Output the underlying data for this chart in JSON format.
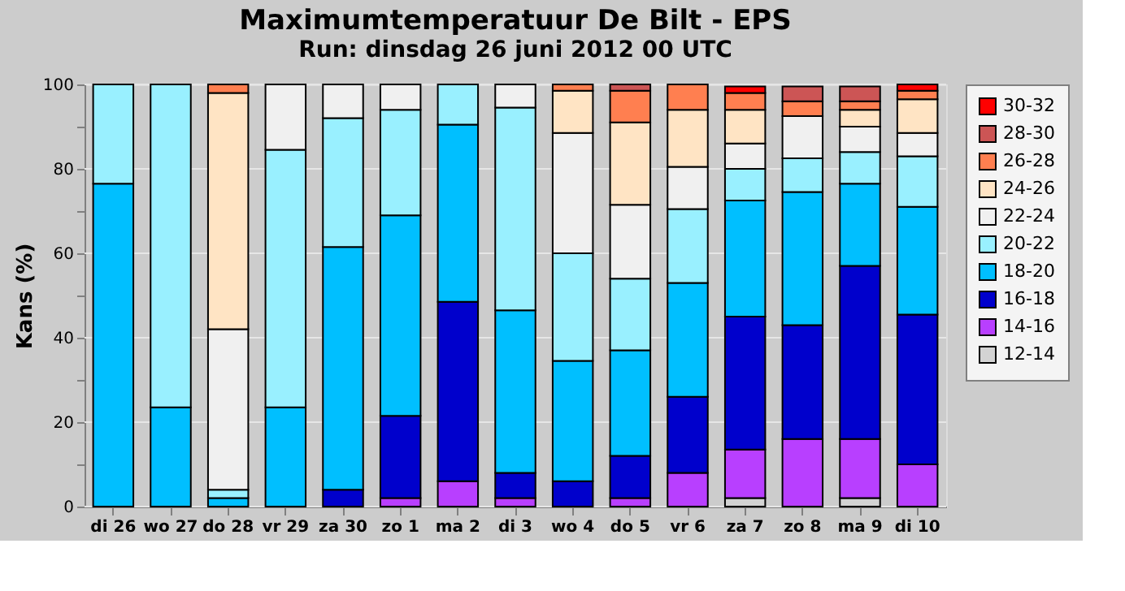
{
  "chart_data": {
    "type": "bar",
    "stacked": true,
    "title": "Maximumtemperatuur De Bilt - EPS",
    "subtitle": "Run: dinsdag 26 juni 2012    00 UTC",
    "ylabel": "Kans (%)",
    "categories": [
      "di 26",
      "wo 27",
      "do 28",
      "vr 29",
      "za 30",
      "zo 1",
      "ma 2",
      "di 3",
      "wo 4",
      "do 5",
      "vr 6",
      "za 7",
      "zo 8",
      "ma 9",
      "di 10"
    ],
    "ylim": [
      0,
      100
    ],
    "yticks": [
      0,
      {
        "value": 10,
        "label": null
      },
      20,
      {
        "value": 30,
        "label": null
      },
      40,
      {
        "value": 50,
        "label": null
      },
      60,
      {
        "value": 70,
        "label": null
      },
      80,
      {
        "value": 90,
        "label": null
      },
      100
    ],
    "grid": "y",
    "legend": "right",
    "series": [
      {
        "name": "12-14",
        "color": "#d3d3d3",
        "values": [
          null,
          null,
          null,
          null,
          null,
          null,
          null,
          null,
          null,
          null,
          null,
          2,
          null,
          2,
          null
        ]
      },
      {
        "name": "14-16",
        "color": "#b83fff",
        "values": [
          null,
          null,
          null,
          null,
          null,
          2,
          6,
          2,
          null,
          2,
          8,
          11.5,
          16,
          14,
          10
        ]
      },
      {
        "name": "16-18",
        "color": "#0000cc",
        "values": [
          null,
          null,
          null,
          null,
          4,
          19.5,
          42.5,
          6,
          6,
          10,
          18,
          31.5,
          27,
          41,
          35.5
        ]
      },
      {
        "name": "18-20",
        "color": "#00bfff",
        "values": [
          76.5,
          23.5,
          2,
          23.5,
          57.5,
          47.5,
          42,
          38.5,
          28.5,
          25,
          27,
          27.5,
          31.5,
          19.5,
          25.5
        ]
      },
      {
        "name": "20-22",
        "color": "#99f0ff",
        "values": [
          23.5,
          76.5,
          2,
          61,
          30.5,
          25,
          9.5,
          48,
          25.5,
          17,
          17.5,
          7.5,
          8,
          7.5,
          12
        ]
      },
      {
        "name": "22-24",
        "color": "#f0f0f0",
        "values": [
          null,
          null,
          38,
          15.5,
          8,
          6,
          null,
          5.5,
          28.5,
          17.5,
          10,
          6,
          10,
          6,
          5.5
        ]
      },
      {
        "name": "24-26",
        "color": "#ffe4c4",
        "values": [
          null,
          null,
          56,
          null,
          null,
          null,
          null,
          null,
          10,
          19.5,
          13.5,
          8,
          null,
          4,
          8
        ]
      },
      {
        "name": "26-28",
        "color": "#ff7f50",
        "values": [
          null,
          null,
          2,
          null,
          null,
          null,
          null,
          null,
          1.5,
          7.5,
          6,
          4,
          3.5,
          2,
          2
        ]
      },
      {
        "name": "28-30",
        "color": "#cc5555",
        "values": [
          null,
          null,
          null,
          null,
          null,
          null,
          null,
          null,
          null,
          1.5,
          null,
          null,
          3.5,
          3.5,
          null
        ]
      },
      {
        "name": "30-32",
        "color": "#ff0000",
        "values": [
          null,
          null,
          null,
          null,
          null,
          null,
          null,
          null,
          null,
          null,
          null,
          1.5,
          null,
          null,
          1.5
        ]
      }
    ]
  }
}
